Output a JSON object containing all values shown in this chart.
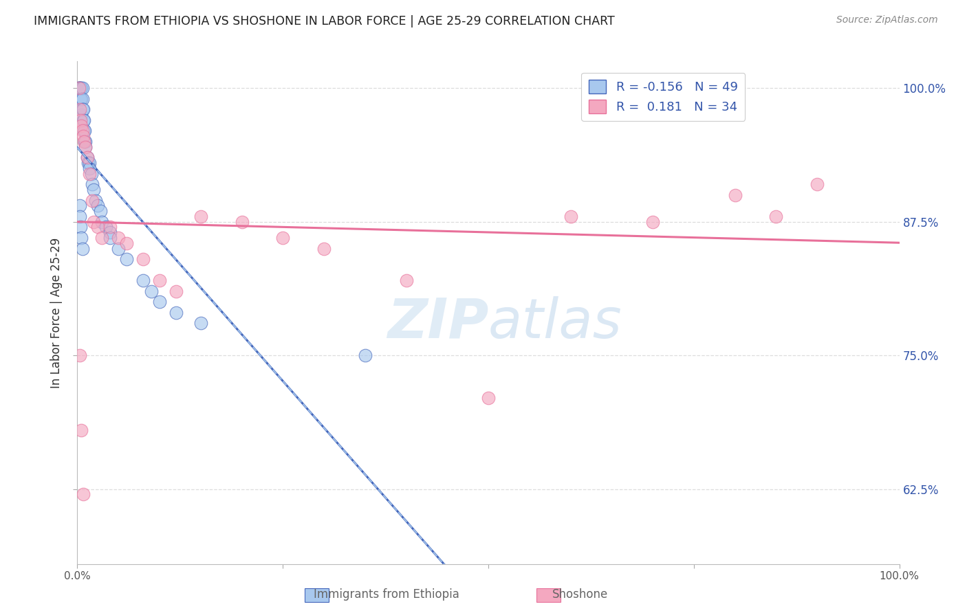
{
  "title": "IMMIGRANTS FROM ETHIOPIA VS SHOSHONE IN LABOR FORCE | AGE 25-29 CORRELATION CHART",
  "source": "Source: ZipAtlas.com",
  "ylabel": "In Labor Force | Age 25-29",
  "legend_label1": "Immigrants from Ethiopia",
  "legend_label2": "Shoshone",
  "R1": -0.156,
  "N1": 49,
  "R2": 0.181,
  "N2": 34,
  "xmin": 0.0,
  "xmax": 1.0,
  "ymin": 0.555,
  "ymax": 1.025,
  "yticks": [
    0.625,
    0.75,
    0.875,
    1.0
  ],
  "ytick_labels": [
    "62.5%",
    "75.0%",
    "87.5%",
    "100.0%"
  ],
  "color_blue": "#A8C8EE",
  "color_pink": "#F4A8C0",
  "color_blue_line": "#4466BB",
  "color_pink_line": "#E8709A",
  "color_blue_dark": "#3355AA",
  "watermark_color": "#C8DDEF",
  "grid_color": "#DDDDDD",
  "title_color": "#222222",
  "source_color": "#888888",
  "tick_color": "#555555",
  "legend_text_color": "#3355AA",
  "bottom_legend_color": "#666666",
  "marker_size": 180,
  "scatter_alpha": 0.65,
  "eth_x": [
    0.001,
    0.002,
    0.002,
    0.003,
    0.003,
    0.003,
    0.004,
    0.004,
    0.005,
    0.005,
    0.005,
    0.006,
    0.006,
    0.006,
    0.007,
    0.007,
    0.008,
    0.008,
    0.009,
    0.009,
    0.01,
    0.01,
    0.012,
    0.013,
    0.015,
    0.015,
    0.017,
    0.018,
    0.02,
    0.022,
    0.025,
    0.028,
    0.03,
    0.035,
    0.04,
    0.04,
    0.05,
    0.06,
    0.08,
    0.09,
    0.1,
    0.12,
    0.15,
    0.003,
    0.003,
    0.004,
    0.005,
    0.006,
    0.35
  ],
  "eth_y": [
    1.0,
    1.0,
    1.0,
    1.0,
    1.0,
    0.99,
    1.0,
    0.99,
    1.0,
    0.99,
    0.975,
    1.0,
    0.99,
    0.98,
    0.98,
    0.97,
    0.97,
    0.96,
    0.96,
    0.95,
    0.95,
    0.945,
    0.935,
    0.93,
    0.93,
    0.925,
    0.92,
    0.91,
    0.905,
    0.895,
    0.89,
    0.885,
    0.875,
    0.87,
    0.865,
    0.86,
    0.85,
    0.84,
    0.82,
    0.81,
    0.8,
    0.79,
    0.78,
    0.89,
    0.88,
    0.87,
    0.86,
    0.85,
    0.75
  ],
  "sho_x": [
    0.002,
    0.003,
    0.004,
    0.005,
    0.006,
    0.007,
    0.008,
    0.01,
    0.012,
    0.015,
    0.018,
    0.02,
    0.025,
    0.03,
    0.04,
    0.05,
    0.06,
    0.08,
    0.1,
    0.12,
    0.15,
    0.2,
    0.25,
    0.3,
    0.4,
    0.5,
    0.6,
    0.7,
    0.8,
    0.85,
    0.9,
    0.003,
    0.005,
    0.007
  ],
  "sho_y": [
    1.0,
    0.98,
    0.97,
    0.965,
    0.96,
    0.955,
    0.95,
    0.945,
    0.935,
    0.92,
    0.895,
    0.875,
    0.87,
    0.86,
    0.87,
    0.86,
    0.855,
    0.84,
    0.82,
    0.81,
    0.88,
    0.875,
    0.86,
    0.85,
    0.82,
    0.71,
    0.88,
    0.875,
    0.9,
    0.88,
    0.91,
    0.75,
    0.68,
    0.62
  ]
}
